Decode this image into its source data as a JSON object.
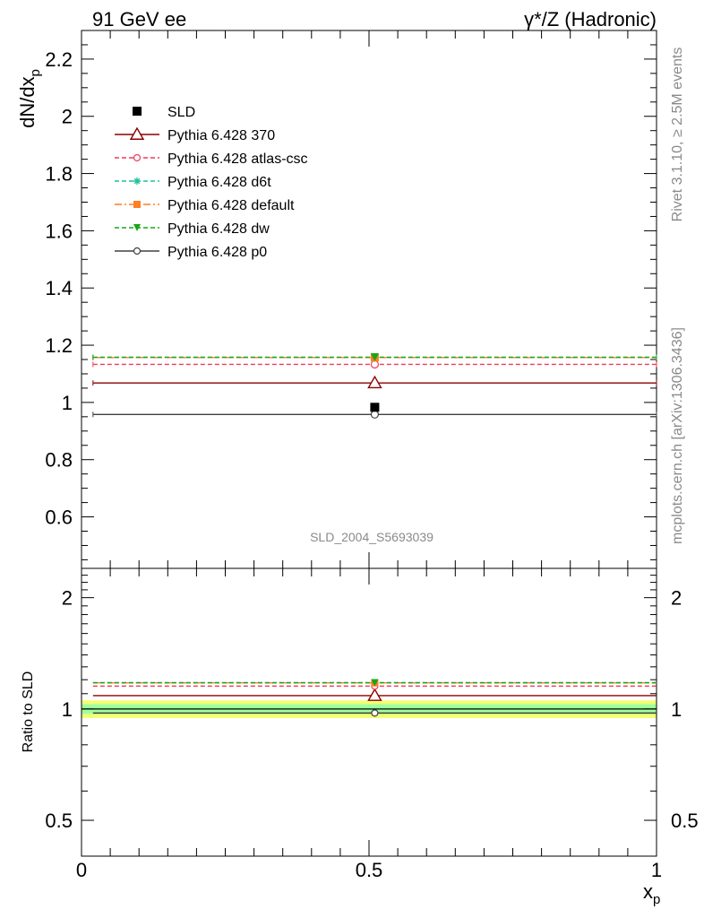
{
  "header": {
    "left": "91 GeV ee",
    "right": "γ*/Z (Hadronic)"
  },
  "side_text": {
    "rivet": "Rivet 3.1.10, ≥ 2.5M events",
    "mcplots": "mcplots.cern.ch [arXiv:1306.3436]"
  },
  "analysis_id": "SLD_2004_S5693039",
  "chart_data": [
    {
      "type": "line",
      "panel": "main",
      "ylabel": "dN/dx",
      "ylabel_sub": "p",
      "xlim": [
        0,
        1
      ],
      "ylim": [
        0.42,
        2.3
      ],
      "yticks": [
        0.6,
        0.8,
        1,
        1.2,
        1.4,
        1.6,
        1.8,
        2,
        2.2
      ],
      "ytick_labels": [
        "0.6",
        "0.8",
        "1",
        "1.2",
        "1.4",
        "1.6",
        "1.8",
        "2",
        "2.2"
      ],
      "data": {
        "name": "SLD",
        "x": 0.51,
        "y": 0.983,
        "xerr": [
          0.02,
          1.0
        ],
        "color": "#000000",
        "marker": "square"
      },
      "series": [
        {
          "name": "Pythia 6.428 370",
          "x": 0.51,
          "y": 1.068,
          "xerr": [
            0.02,
            1.0
          ],
          "color": "#8b0000",
          "dash": "solid",
          "marker": "triangle-open"
        },
        {
          "name": "Pythia 6.428 atlas-csc",
          "x": 0.51,
          "y": 1.133,
          "xerr": [
            0.02,
            1.0
          ],
          "color": "#f03c5a",
          "dash": "dashed",
          "marker": "circle-open"
        },
        {
          "name": "Pythia 6.428 d6t",
          "x": 0.51,
          "y": 1.157,
          "xerr": [
            0.02,
            1.0
          ],
          "color": "#1ac49a",
          "dash": "dashed",
          "marker": "star"
        },
        {
          "name": "Pythia 6.428 default",
          "x": 0.51,
          "y": 1.157,
          "xerr": [
            0.02,
            1.0
          ],
          "color": "#ff7f24",
          "dash": "dashdot",
          "marker": "square"
        },
        {
          "name": "Pythia 6.428 dw",
          "x": 0.51,
          "y": 1.158,
          "xerr": [
            0.02,
            1.0
          ],
          "color": "#15a815",
          "dash": "dashed",
          "marker": "triangle-down"
        },
        {
          "name": "Pythia 6.428 p0",
          "x": 0.51,
          "y": 0.958,
          "xerr": [
            0.02,
            1.0
          ],
          "color": "#404040",
          "dash": "solid",
          "marker": "circle-open"
        }
      ],
      "legend_position": "top-left"
    },
    {
      "type": "line",
      "panel": "ratio",
      "ylabel": "Ratio to SLD",
      "xlabel": "x",
      "xlabel_sub": "p",
      "xlim": [
        0,
        1
      ],
      "xticks": [
        0,
        0.5,
        1
      ],
      "xtick_labels": [
        "0",
        "0.5",
        "1"
      ],
      "yscale": "log",
      "ylim": [
        0.4,
        2.4
      ],
      "yticks": [
        0.5,
        1,
        2
      ],
      "ytick_labels": [
        "0.5",
        "1",
        "2"
      ],
      "band": {
        "inner": [
          0.97,
          1.03
        ],
        "outer": [
          0.945,
          1.055
        ],
        "inner_color": "#9dff9d",
        "outer_color": "#f3ff73"
      },
      "series": [
        {
          "name": "Pythia 6.428 370",
          "y": 1.087
        },
        {
          "name": "Pythia 6.428 atlas-csc",
          "y": 1.153
        },
        {
          "name": "Pythia 6.428 d6t",
          "y": 1.177
        },
        {
          "name": "Pythia 6.428 default",
          "y": 1.177
        },
        {
          "name": "Pythia 6.428 dw",
          "y": 1.178
        },
        {
          "name": "Pythia 6.428 p0",
          "y": 0.975
        }
      ]
    }
  ]
}
